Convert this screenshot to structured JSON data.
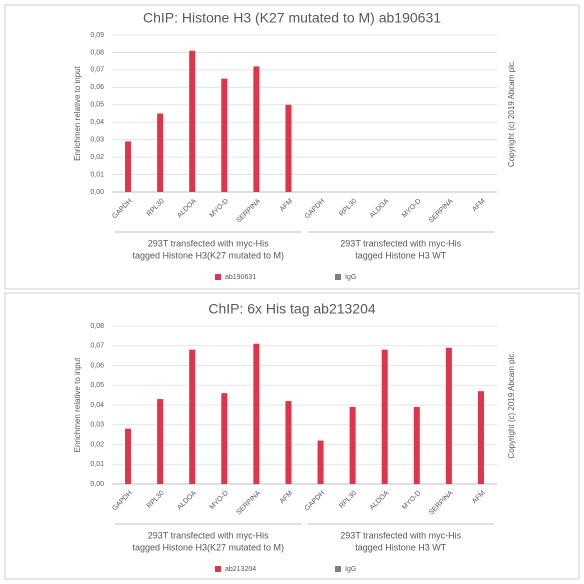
{
  "chart_data": [
    {
      "type": "bar",
      "title": "ChIP: Histone H3 (K27 mutated to M) ab190631",
      "y_label": "Enrichmen relative to input",
      "side_note": "Copyright (c) 2019 Abcam plc.",
      "categories": [
        "GAPDH",
        "RPL30",
        "ALDOA",
        "MYO-D",
        "SERPINA",
        "AFM",
        "GAPDH",
        "RPL30",
        "ALDOA",
        "MYO-D",
        "SERPINA",
        "AFM"
      ],
      "groups": [
        [
          "293T transfected with myc-His",
          "tagged Histone H3(K27 mutated to M)"
        ],
        [
          "293T transfected with myc-His",
          "tagged Histone H3 WT"
        ]
      ],
      "series": [
        {
          "name": "ab190631",
          "color": "#e0344a",
          "values": [
            0.029,
            0.045,
            0.081,
            0.065,
            0.072,
            0.05,
            null,
            null,
            null,
            null,
            null,
            null
          ]
        },
        {
          "name": "IgG",
          "color": "#7f7f7f",
          "values": [
            null,
            null,
            null,
            null,
            null,
            null,
            null,
            null,
            null,
            null,
            null,
            null
          ]
        }
      ],
      "ylim": [
        0,
        0.09
      ],
      "yticks": [
        {
          "value": 0,
          "label": "0,00"
        },
        {
          "value": 0.01,
          "label": "0,01"
        },
        {
          "value": 0.02,
          "label": "0,02"
        },
        {
          "value": 0.03,
          "label": "0,03"
        },
        {
          "value": 0.04,
          "label": "0,04"
        },
        {
          "value": 0.05,
          "label": "0,05"
        },
        {
          "value": 0.06,
          "label": "0,06"
        },
        {
          "value": 0.07,
          "label": "0,07"
        },
        {
          "value": 0.08,
          "label": "0,08"
        },
        {
          "value": 0.09,
          "label": "0,09"
        }
      ],
      "grid": true,
      "legend": "bottom"
    },
    {
      "type": "bar",
      "title": "ChIP: 6x His tag ab213204",
      "y_label": "Enrichmen relative to input",
      "side_note": "Copyright (c) 2019 Abcam plc.",
      "categories": [
        "GAPDH",
        "RPL30",
        "ALDOA",
        "MYO-D",
        "SERPINA",
        "AFM",
        "GAPDH",
        "RPL30",
        "ALDOA",
        "MYO-D",
        "SERPINA",
        "AFM"
      ],
      "groups": [
        [
          "293T transfected with myc-His",
          "tagged Histone H3(K27 mutated to M)"
        ],
        [
          "293T transfected with myc-His",
          "tagged Histone H3 WT"
        ]
      ],
      "series": [
        {
          "name": "ab213204",
          "color": "#e0344a",
          "values": [
            0.028,
            0.043,
            0.068,
            0.046,
            0.071,
            0.042,
            0.022,
            0.039,
            0.068,
            0.039,
            0.069,
            0.047
          ]
        },
        {
          "name": "IgG",
          "color": "#7f7f7f",
          "values": [
            null,
            null,
            null,
            null,
            null,
            null,
            null,
            null,
            null,
            null,
            null,
            null
          ]
        }
      ],
      "ylim": [
        0,
        0.08
      ],
      "yticks": [
        {
          "value": 0,
          "label": "0,00"
        },
        {
          "value": 0.01,
          "label": "0,01"
        },
        {
          "value": 0.02,
          "label": "0,02"
        },
        {
          "value": 0.03,
          "label": "0,03"
        },
        {
          "value": 0.04,
          "label": "0,04"
        },
        {
          "value": 0.05,
          "label": "0,05"
        },
        {
          "value": 0.06,
          "label": "0,06"
        },
        {
          "value": 0.07,
          "label": "0,07"
        },
        {
          "value": 0.08,
          "label": "0,08"
        }
      ],
      "grid": true,
      "legend": "bottom"
    }
  ]
}
